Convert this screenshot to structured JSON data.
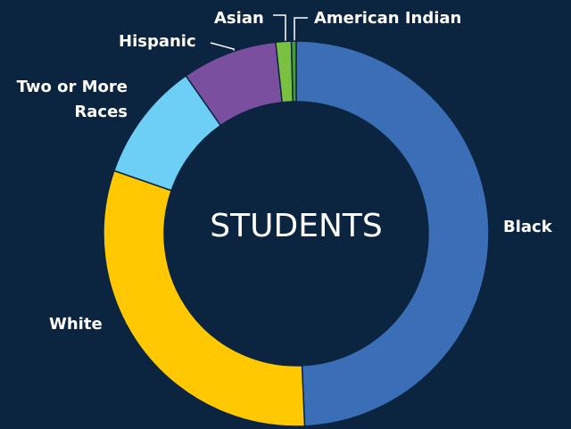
{
  "chart_data": {
    "type": "donut",
    "center_text": "STUDENTS",
    "categories": [
      "Black",
      "White",
      "Two or More Races",
      "Hispanic",
      "Asian",
      "American Indian"
    ],
    "values": [
      49.3,
      31,
      10,
      8,
      1.3,
      0.4
    ],
    "colors": [
      "#3a6fb8",
      "#ffc800",
      "#6ecff6",
      "#7b4fa0",
      "#7ac142",
      "#4a9a3a"
    ]
  }
}
